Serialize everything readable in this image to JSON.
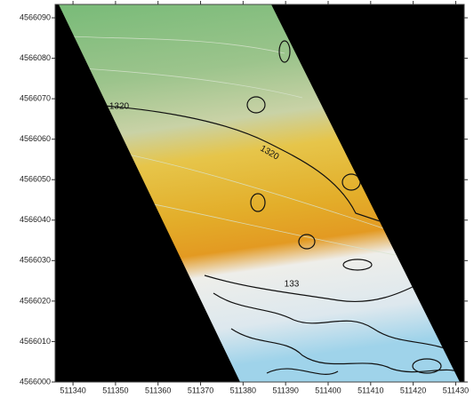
{
  "chart_data": {
    "type": "contour-map",
    "contour_labels": [
      "1320",
      "1320",
      "133"
    ],
    "xlim": [
      511335.8,
      511432
    ],
    "ylim": [
      4566000,
      4566093.3
    ],
    "xticks": [
      511340,
      511350,
      511360,
      511370,
      511380,
      511390,
      511400,
      511410,
      511420,
      511430
    ],
    "yticks": [
      4566000,
      4566010,
      4566020,
      4566030,
      4566040,
      4566050,
      4566060,
      4566070,
      4566080,
      4566090
    ]
  }
}
